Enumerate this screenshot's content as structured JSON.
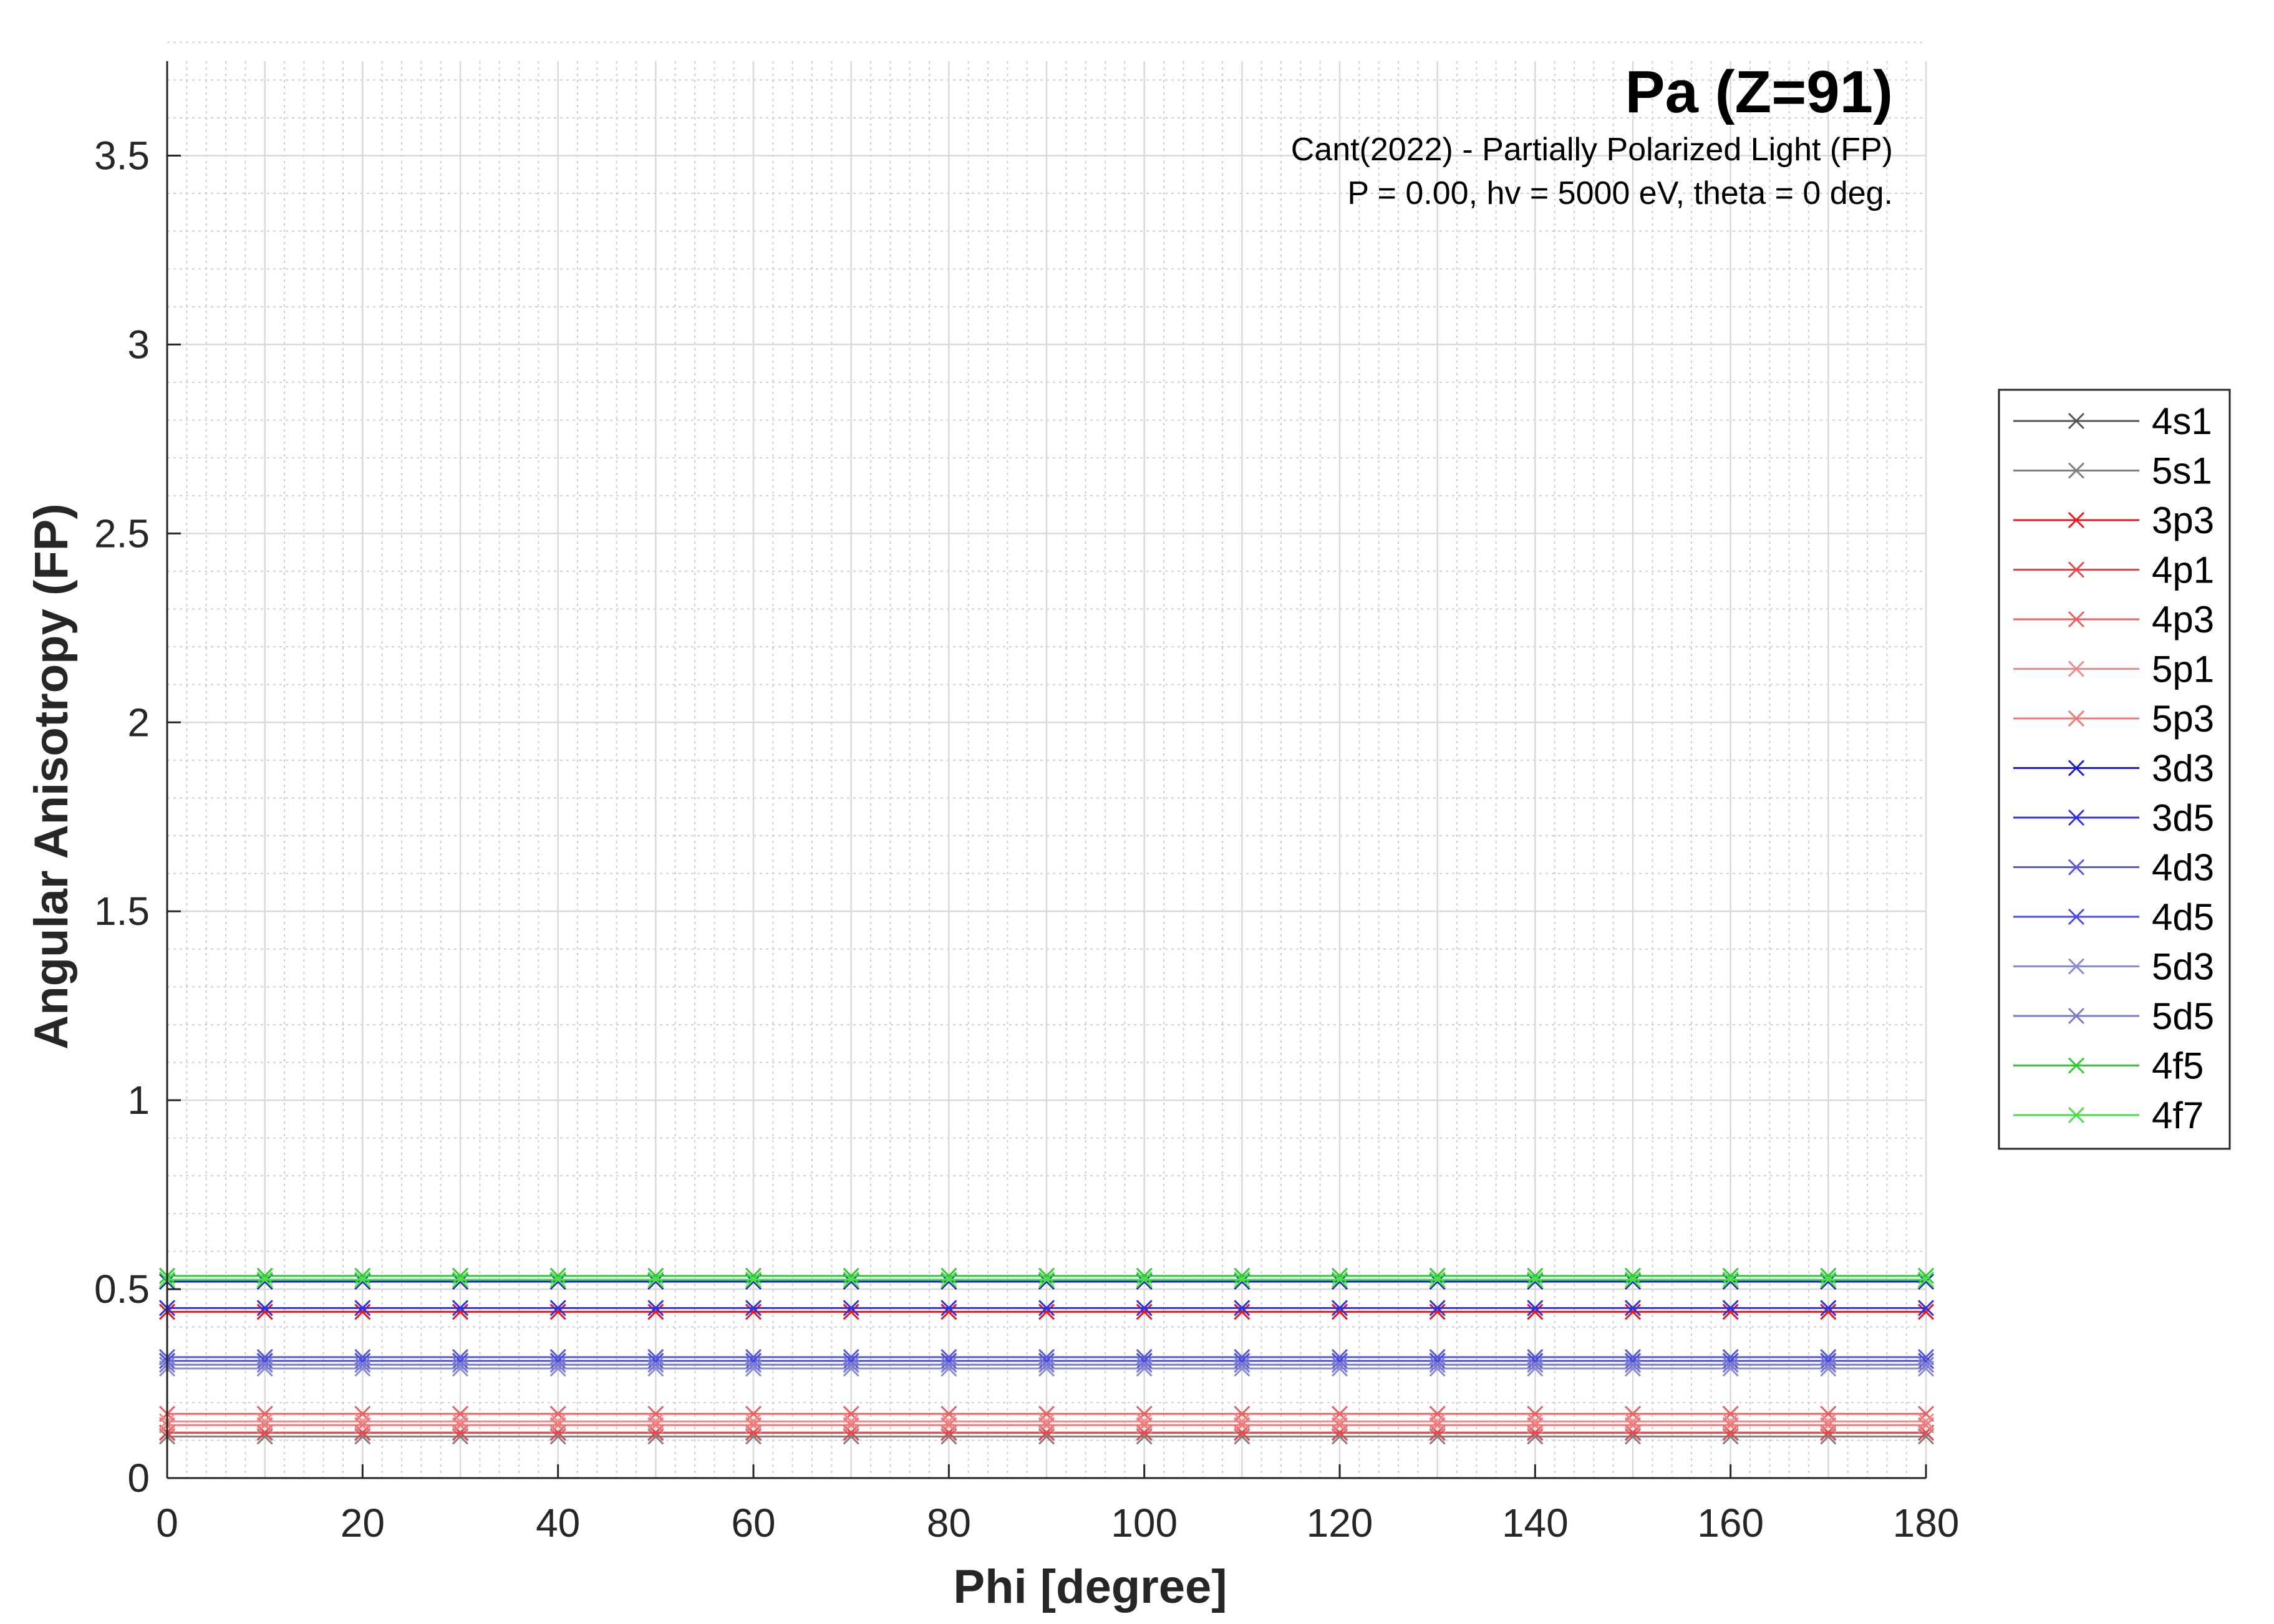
{
  "chart_data": {
    "type": "line",
    "title": "Pa (Z=91)",
    "subtitle_lines": [
      "Cant(2022) - Partially Polarized Light (FP)",
      "P = 0.00, hv = 5000 eV, theta = 0 deg."
    ],
    "xlabel": "Phi [degree]",
    "ylabel": "Angular Anisotropy (FP)",
    "xlim": [
      0,
      180
    ],
    "ylim": [
      0,
      3.75
    ],
    "xticks": [
      0,
      20,
      40,
      60,
      80,
      100,
      120,
      140,
      160,
      180
    ],
    "yticks": [
      0,
      0.5,
      1,
      1.5,
      2,
      2.5,
      3,
      3.5
    ],
    "xtick_labels": [
      "0",
      "20",
      "40",
      "60",
      "80",
      "100",
      "120",
      "140",
      "160",
      "180"
    ],
    "ytick_labels": [
      "0",
      "0.5",
      "1",
      "1.5",
      "2",
      "2.5",
      "3",
      "3.5"
    ],
    "grid": true,
    "minor_grid": true,
    "legend_position": "outside-right",
    "marker": "x",
    "x": [
      0,
      10,
      20,
      30,
      40,
      50,
      60,
      70,
      80,
      90,
      100,
      110,
      120,
      130,
      140,
      150,
      160,
      170,
      180
    ],
    "series": [
      {
        "name": "4s1",
        "color": "#555555",
        "value": 0.12
      },
      {
        "name": "5s1",
        "color": "#808080",
        "value": 0.11
      },
      {
        "name": "3p3",
        "color": "#e41a1c",
        "value": 0.44
      },
      {
        "name": "4p1",
        "color": "#e8474a",
        "value": 0.12
      },
      {
        "name": "4p3",
        "color": "#e86060",
        "value": 0.17
      },
      {
        "name": "5p1",
        "color": "#ee8a8a",
        "value": 0.15
      },
      {
        "name": "5p3",
        "color": "#f07878",
        "value": 0.14
      },
      {
        "name": "3d3",
        "color": "#1c1cc8",
        "value": 0.52
      },
      {
        "name": "3d5",
        "color": "#3030e0",
        "value": 0.45
      },
      {
        "name": "4d3",
        "color": "#5a5ad8",
        "value": 0.32
      },
      {
        "name": "4d5",
        "color": "#4a4ae6",
        "value": 0.31
      },
      {
        "name": "5d3",
        "color": "#8a8ad8",
        "value": 0.29
      },
      {
        "name": "5d5",
        "color": "#7a7acc",
        "value": 0.3
      },
      {
        "name": "4f5",
        "color": "#2ecc2e",
        "value": 0.535
      },
      {
        "name": "4f7",
        "color": "#4ade4a",
        "value": 0.525
      }
    ]
  }
}
